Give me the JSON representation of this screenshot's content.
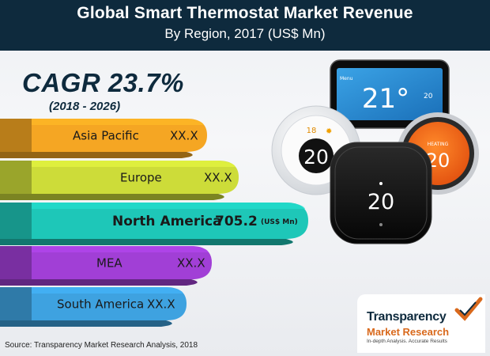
{
  "header": {
    "title": "Global Smart Thermostat Market Revenue",
    "subtitle": "By Region, 2017 (US$ Mn)"
  },
  "cagr": {
    "value": "CAGR 23.7%",
    "period": "(2018 - 2026)"
  },
  "chart_data": {
    "type": "bar",
    "title": "Global Smart Thermostat Market Revenue",
    "subtitle": "By Region, 2017 (US$ Mn)",
    "categories": [
      "Asia Pacific",
      "Europe",
      "North America",
      "MEA",
      "South America"
    ],
    "value_labels": [
      "XX.X",
      "XX.X",
      "705.2",
      "XX.X",
      "XX.X"
    ],
    "values": [
      null,
      null,
      705.2,
      null,
      null
    ],
    "unit": "(US$ Mn)",
    "colors": [
      "#f5a623",
      "#cddc39",
      "#1ec7b8",
      "#a13fd6",
      "#3ea2e0"
    ]
  },
  "devices": {
    "device1_temp": "21°",
    "device1_menu": "Menu",
    "device1_setpoint": "20",
    "device2_small": "18",
    "device2_temp": "20",
    "device3_temp": "20",
    "device4_label": "HEATING",
    "device4_temp": "20"
  },
  "source": "Source: Transparency Market Research Analysis, 2018",
  "logo": {
    "line1": "Transparency",
    "line2": "Market Research",
    "line3": "In-depth Analysis. Accurate Results"
  }
}
